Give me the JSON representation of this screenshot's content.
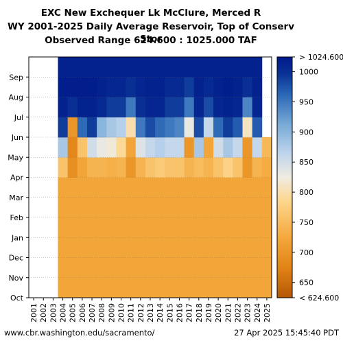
{
  "chart_data": {
    "type": "heatmap",
    "title": "EXC New Exchequer Lk McClure, Merced R",
    "subtitle": "WY 2001-2025 Daily Average Reservoir, Top of Conserv Stor",
    "range_note": "Observed Range 624.600 : 1025.000 TAF",
    "x_categories": [
      "2001",
      "2002",
      "2003",
      "2004",
      "2005",
      "2006",
      "2007",
      "2008",
      "2009",
      "2010",
      "2011",
      "2012",
      "2013",
      "2014",
      "2015",
      "2016",
      "2017",
      "2018",
      "2019",
      "2020",
      "2021",
      "2022",
      "2023",
      "2024",
      "2025"
    ],
    "y_categories": [
      "Oct",
      "Nov",
      "Dec",
      "Jan",
      "Feb",
      "Mar",
      "Apr",
      "May",
      "Jun",
      "Jul",
      "Aug",
      "Sep"
    ],
    "colorbar": {
      "min": 624.6,
      "max": 1024.6,
      "top_label": "> 1024.600",
      "bottom_label": "< 624.600",
      "ticks": [
        "1000",
        "950",
        "900",
        "850",
        "800",
        "750",
        "700",
        "650"
      ],
      "tick_values": [
        1000,
        950,
        900,
        850,
        800,
        750,
        700,
        650
      ]
    },
    "values_by_year": [
      [
        null,
        null,
        null,
        null,
        null,
        null,
        null,
        null,
        null,
        null,
        null,
        null
      ],
      [
        null,
        null,
        null,
        null,
        null,
        null,
        null,
        null,
        null,
        null,
        null,
        null
      ],
      [
        null,
        null,
        null,
        null,
        null,
        null,
        null,
        null,
        null,
        null,
        null,
        null
      ],
      [
        720,
        720,
        720,
        720,
        720,
        720,
        760,
        880,
        990,
        1015,
        1020,
        1015
      ],
      [
        720,
        720,
        720,
        720,
        720,
        720,
        690,
        680,
        700,
        1000,
        1020,
        1015
      ],
      [
        720,
        720,
        720,
        720,
        720,
        720,
        720,
        760,
        960,
        1015,
        1020,
        1015
      ],
      [
        720,
        720,
        720,
        720,
        720,
        720,
        740,
        850,
        990,
        1015,
        1020,
        1015
      ],
      [
        720,
        720,
        720,
        720,
        720,
        720,
        740,
        830,
        900,
        1005,
        1015,
        1015
      ],
      [
        720,
        720,
        720,
        720,
        720,
        720,
        735,
        820,
        880,
        990,
        1010,
        1015
      ],
      [
        720,
        720,
        720,
        720,
        720,
        720,
        740,
        790,
        870,
        990,
        1010,
        1015
      ],
      [
        720,
        720,
        720,
        720,
        720,
        720,
        700,
        720,
        800,
        950,
        1000,
        1015
      ],
      [
        720,
        720,
        720,
        720,
        720,
        720,
        740,
        840,
        950,
        1000,
        1010,
        1015
      ],
      [
        720,
        720,
        720,
        720,
        720,
        720,
        760,
        860,
        980,
        1010,
        1015,
        1015
      ],
      [
        720,
        720,
        720,
        720,
        720,
        720,
        770,
        870,
        960,
        1010,
        1015,
        1015
      ],
      [
        720,
        720,
        720,
        720,
        720,
        720,
        760,
        860,
        950,
        990,
        1005,
        1015
      ],
      [
        720,
        720,
        720,
        720,
        720,
        720,
        760,
        860,
        940,
        990,
        1005,
        1015
      ],
      [
        720,
        720,
        720,
        720,
        720,
        720,
        740,
        700,
        830,
        950,
        990,
        1015
      ],
      [
        720,
        720,
        720,
        720,
        720,
        720,
        750,
        880,
        980,
        1010,
        1015,
        1015
      ],
      [
        720,
        720,
        720,
        720,
        720,
        720,
        740,
        720,
        860,
        980,
        1005,
        1015
      ],
      [
        720,
        720,
        720,
        720,
        720,
        720,
        760,
        850,
        960,
        1010,
        1015,
        1015
      ],
      [
        720,
        720,
        720,
        720,
        720,
        720,
        780,
        880,
        990,
        1015,
        1020,
        1015
      ],
      [
        720,
        720,
        720,
        720,
        720,
        720,
        760,
        860,
        970,
        1010,
        1015,
        1015
      ],
      [
        720,
        720,
        720,
        720,
        720,
        720,
        700,
        700,
        810,
        940,
        1000,
        1015
      ],
      [
        720,
        720,
        720,
        720,
        720,
        720,
        740,
        860,
        970,
        1010,
        1015,
        1015
      ],
      [
        720,
        720,
        720,
        720,
        720,
        720,
        730,
        745,
        null,
        null,
        null,
        null
      ]
    ],
    "grid": true
  },
  "footer": {
    "left": "www.cbr.washington.edu/sacramento/",
    "right": "27 Apr 2025 15:45:40 PDT"
  },
  "colors": {
    "low": "#b35806",
    "mid_low": "#f0a030",
    "mid": "#fee8b0",
    "mid_high": "#a6c8e8",
    "high": "#08306b",
    "top": "#00198a"
  }
}
